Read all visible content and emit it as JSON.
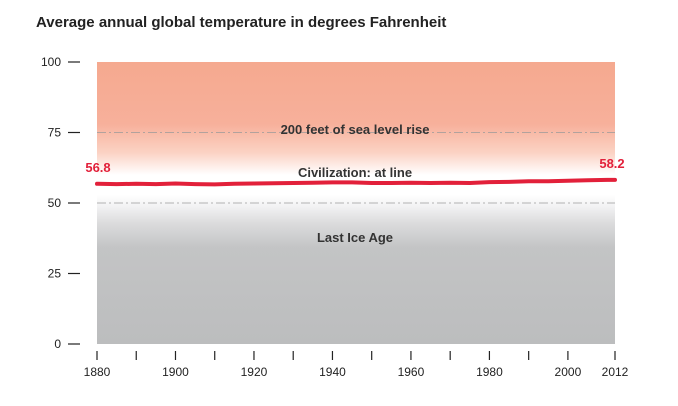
{
  "chart_data": {
    "type": "line",
    "title": "Average annual global temperature in degrees Fahrenheit",
    "xlabel": "",
    "ylabel": "",
    "xlim": [
      1880,
      2012
    ],
    "ylim": [
      0,
      100
    ],
    "x_ticks": [
      1880,
      1890,
      1900,
      1910,
      1920,
      1930,
      1940,
      1950,
      1960,
      1970,
      1980,
      1990,
      2000,
      2012
    ],
    "x_tick_labels": [
      "1880",
      "",
      "1900",
      "",
      "1920",
      "",
      "1940",
      "",
      "1960",
      "",
      "1980",
      "",
      "2000",
      "2012"
    ],
    "y_ticks": [
      0,
      25,
      50,
      75,
      100
    ],
    "y_tick_labels": [
      "0",
      "25",
      "50",
      "75",
      "100"
    ],
    "grid": "dashed horizontal lines at 50 and 75",
    "series": [
      {
        "color": "#e2203a",
        "x": [
          1880,
          1885,
          1890,
          1895,
          1900,
          1905,
          1910,
          1915,
          1920,
          1925,
          1930,
          1935,
          1940,
          1945,
          1950,
          1955,
          1960,
          1965,
          1970,
          1975,
          1980,
          1985,
          1990,
          1995,
          2000,
          2005,
          2010,
          2012
        ],
        "y": [
          56.8,
          56.7,
          56.8,
          56.7,
          56.9,
          56.7,
          56.6,
          56.8,
          56.9,
          57.0,
          57.1,
          57.2,
          57.3,
          57.3,
          57.1,
          57.1,
          57.2,
          57.1,
          57.2,
          57.1,
          57.4,
          57.5,
          57.7,
          57.7,
          57.9,
          58.1,
          58.2,
          58.2
        ]
      }
    ],
    "annotations": [
      {
        "text": "56.8",
        "x": 1880,
        "y": 56.8,
        "color": "#e2203a"
      },
      {
        "text": "58.2",
        "x": 2012,
        "y": 58.2,
        "color": "#e2203a"
      }
    ],
    "bands": [
      {
        "label": "200 feet of sea level rise",
        "range": [
          58,
          100
        ],
        "color": "#f5a990"
      },
      {
        "label": "Civilization: at line",
        "range": [
          50,
          66
        ],
        "color": "#ffffff"
      },
      {
        "label": "Last Ice Age",
        "range": [
          0,
          50
        ],
        "color": "#bdbebf"
      }
    ]
  }
}
